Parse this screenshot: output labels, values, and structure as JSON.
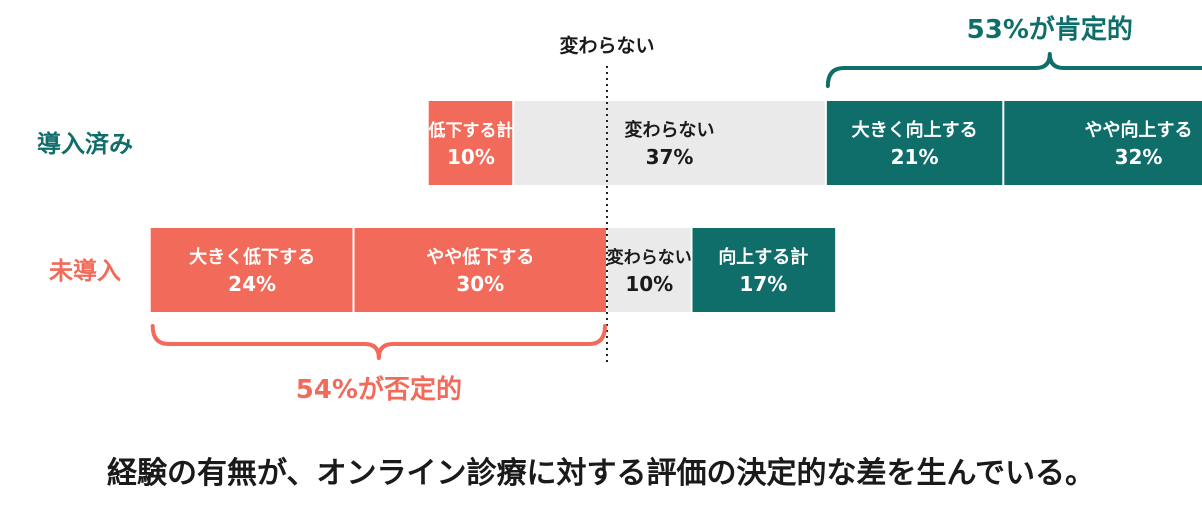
{
  "colors": {
    "positive": "#0f6e6a",
    "negative": "#f26a59",
    "neutral": "#eaeaea",
    "text_dark": "#1a1a1a",
    "text_light": "#ffffff"
  },
  "chart_data": {
    "type": "bar",
    "orientation": "horizontal",
    "stacked": true,
    "grid": false,
    "legend": "none",
    "neutral_marker_label": "変わらない",
    "rows": [
      {
        "name": "導入済み",
        "color": "#0f6e6a",
        "segments": [
          {
            "label": "低下する計",
            "value": 10,
            "value_text": "10%",
            "kind": "negative"
          },
          {
            "label": "変わらない",
            "value": 37,
            "value_text": "37%",
            "kind": "neutral"
          },
          {
            "label": "大きく向上する",
            "value": 21,
            "value_text": "21%",
            "kind": "positive"
          },
          {
            "label": "やや向上する",
            "value": 32,
            "value_text": "32%",
            "kind": "positive"
          }
        ],
        "summary": {
          "text": "53%が肯定的",
          "kind": "positive"
        }
      },
      {
        "name": "未導入",
        "color": "#f26a59",
        "segments": [
          {
            "label": "大きく低下する",
            "value": 24,
            "value_text": "24%",
            "kind": "negative"
          },
          {
            "label": "やや低下する",
            "value": 30,
            "value_text": "30%",
            "kind": "negative"
          },
          {
            "label": "変わらない",
            "value": 10,
            "value_text": "10%",
            "kind": "neutral"
          },
          {
            "label": "向上する計",
            "value": 17,
            "value_text": "17%",
            "kind": "positive"
          }
        ],
        "summary": {
          "text": "54%が否定的",
          "kind": "negative"
        }
      }
    ]
  },
  "caption": "経験の有無が、オンライン診療に対する評価の決定的な差を生んでいる。"
}
